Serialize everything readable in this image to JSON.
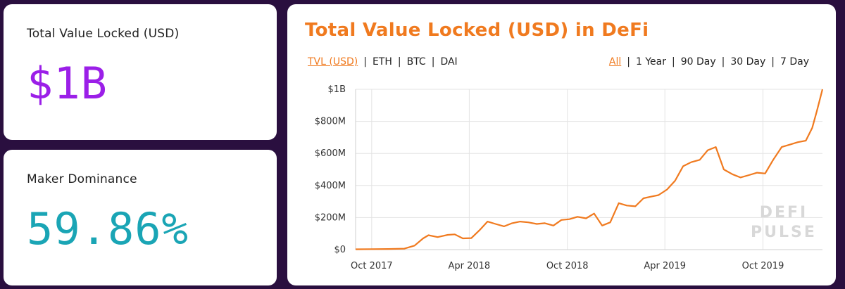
{
  "stats": {
    "tvl": {
      "label": "Total Value Locked (USD)",
      "value": "$1B"
    },
    "maker": {
      "label": "Maker Dominance",
      "value": "59.86%"
    }
  },
  "chart_panel": {
    "title": "Total Value Locked (USD) in DeFi",
    "metrics": [
      {
        "label": "TVL (USD)",
        "active": true
      },
      {
        "label": "ETH",
        "active": false
      },
      {
        "label": "BTC",
        "active": false
      },
      {
        "label": "DAI",
        "active": false
      }
    ],
    "ranges": [
      {
        "label": "All",
        "active": true
      },
      {
        "label": "1 Year",
        "active": false
      },
      {
        "label": "90 Day",
        "active": false
      },
      {
        "label": "30 Day",
        "active": false
      },
      {
        "label": "7 Day",
        "active": false
      }
    ],
    "watermark": [
      "DEFI",
      "PULSE"
    ]
  },
  "chart_data": {
    "type": "line",
    "title": "Total Value Locked (USD) in DeFi",
    "xlabel": "",
    "ylabel": "",
    "color": "#f07a1f",
    "x_ticks": [
      "Oct 2017",
      "Apr 2018",
      "Oct 2018",
      "Apr 2019",
      "Oct 2019"
    ],
    "y_ticks": [
      "$0",
      "$200M",
      "$400M",
      "$600M",
      "$800M",
      "$1B"
    ],
    "ylim": [
      0,
      1000
    ],
    "xlim": [
      "2017-09-01",
      "2020-01-20"
    ],
    "grid": true,
    "series": [
      {
        "points": [
          [
            "2017-09-01",
            2
          ],
          [
            "2017-10-01",
            3
          ],
          [
            "2017-11-01",
            4
          ],
          [
            "2017-12-01",
            6
          ],
          [
            "2017-12-20",
            25
          ],
          [
            "2018-01-05",
            70
          ],
          [
            "2018-01-15",
            90
          ],
          [
            "2018-02-01",
            78
          ],
          [
            "2018-02-20",
            92
          ],
          [
            "2018-03-05",
            95
          ],
          [
            "2018-03-20",
            70
          ],
          [
            "2018-04-05",
            72
          ],
          [
            "2018-04-20",
            120
          ],
          [
            "2018-05-05",
            175
          ],
          [
            "2018-05-20",
            160
          ],
          [
            "2018-06-05",
            145
          ],
          [
            "2018-06-20",
            165
          ],
          [
            "2018-07-05",
            175
          ],
          [
            "2018-07-20",
            170
          ],
          [
            "2018-08-05",
            160
          ],
          [
            "2018-08-20",
            165
          ],
          [
            "2018-09-05",
            150
          ],
          [
            "2018-09-20",
            185
          ],
          [
            "2018-10-05",
            190
          ],
          [
            "2018-10-20",
            205
          ],
          [
            "2018-11-05",
            195
          ],
          [
            "2018-11-20",
            225
          ],
          [
            "2018-12-05",
            150
          ],
          [
            "2018-12-20",
            170
          ],
          [
            "2019-01-05",
            290
          ],
          [
            "2019-01-20",
            275
          ],
          [
            "2019-02-05",
            270
          ],
          [
            "2019-02-20",
            320
          ],
          [
            "2019-03-05",
            330
          ],
          [
            "2019-03-20",
            340
          ],
          [
            "2019-04-05",
            375
          ],
          [
            "2019-04-20",
            430
          ],
          [
            "2019-05-05",
            520
          ],
          [
            "2019-05-20",
            545
          ],
          [
            "2019-06-05",
            560
          ],
          [
            "2019-06-20",
            620
          ],
          [
            "2019-07-05",
            640
          ],
          [
            "2019-07-20",
            500
          ],
          [
            "2019-08-05",
            470
          ],
          [
            "2019-08-20",
            450
          ],
          [
            "2019-09-05",
            465
          ],
          [
            "2019-09-20",
            480
          ],
          [
            "2019-10-05",
            475
          ],
          [
            "2019-10-20",
            560
          ],
          [
            "2019-11-05",
            640
          ],
          [
            "2019-11-20",
            655
          ],
          [
            "2019-12-05",
            670
          ],
          [
            "2019-12-20",
            680
          ],
          [
            "2020-01-01",
            760
          ],
          [
            "2020-01-10",
            870
          ],
          [
            "2020-01-20",
            1000
          ]
        ]
      }
    ]
  }
}
